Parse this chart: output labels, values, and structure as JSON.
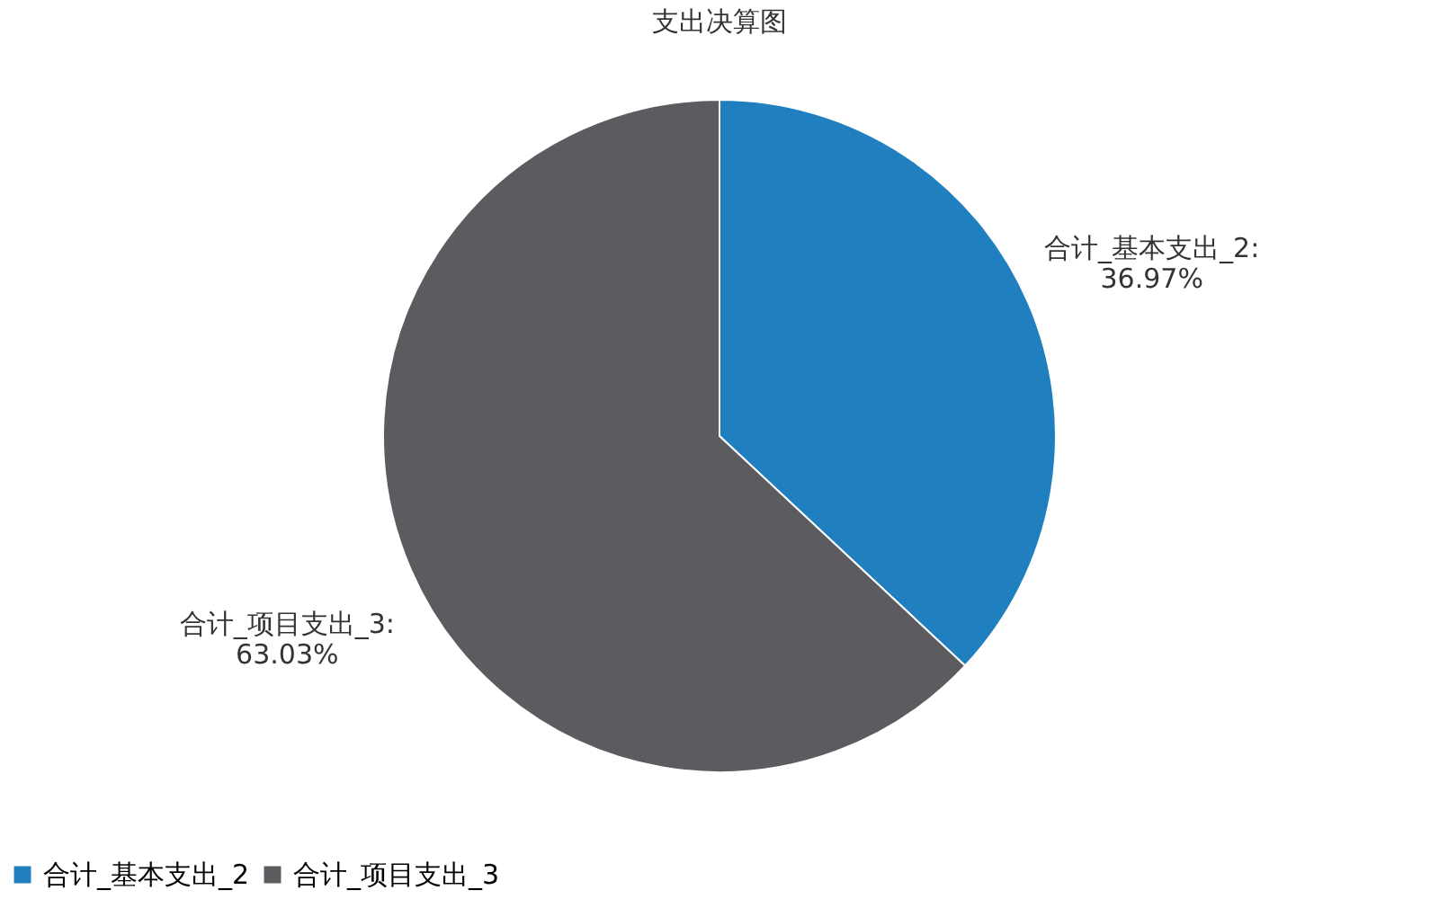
{
  "chart_data": {
    "type": "pie",
    "title": "支出决算图",
    "categories": [
      "合计_基本支出_2",
      "合计_项目支出_3"
    ],
    "values": [
      36.97,
      63.03
    ],
    "colors": [
      "#1f7fbf",
      "#5c5b60"
    ],
    "value_labels": [
      "合计_基本支出_2:\n36.97%",
      "合计_项目支出_3:\n63.03%"
    ],
    "legend": "bottom"
  }
}
